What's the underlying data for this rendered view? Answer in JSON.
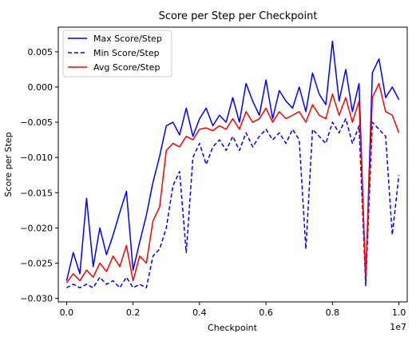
{
  "chart_data": {
    "type": "line",
    "title": "Score per Step per Checkpoint",
    "xlabel": "Checkpoint",
    "ylabel": "Score per Step",
    "x_offset_label": "1e7",
    "xlim": [
      -0.025,
      1.025
    ],
    "ylim": [
      -0.0305,
      0.0085
    ],
    "x_ticks": [
      0.0,
      0.2,
      0.4,
      0.6,
      0.8,
      1.0
    ],
    "x_tick_labels": [
      "0.0",
      "0.2",
      "0.4",
      "0.6",
      "0.8",
      "1.0"
    ],
    "y_ticks": [
      -0.03,
      -0.025,
      -0.02,
      -0.015,
      -0.01,
      -0.005,
      0.0,
      0.005
    ],
    "y_tick_labels": [
      "−0.030",
      "−0.025",
      "−0.020",
      "−0.015",
      "−0.010",
      "−0.005",
      "0.000",
      "0.005"
    ],
    "grid": false,
    "legend_position": "top-left",
    "x": [
      0.0,
      0.02,
      0.04,
      0.06,
      0.08,
      0.1,
      0.12,
      0.14,
      0.16,
      0.18,
      0.2,
      0.22,
      0.24,
      0.26,
      0.28,
      0.3,
      0.32,
      0.34,
      0.36,
      0.38,
      0.4,
      0.42,
      0.44,
      0.46,
      0.48,
      0.5,
      0.52,
      0.54,
      0.56,
      0.58,
      0.6,
      0.62,
      0.64,
      0.66,
      0.68,
      0.7,
      0.72,
      0.74,
      0.76,
      0.78,
      0.8,
      0.82,
      0.84,
      0.86,
      0.88,
      0.9,
      0.92,
      0.94,
      0.96,
      0.98,
      1.0
    ],
    "series": [
      {
        "name": "Max Score/Step",
        "color": "#0000ff",
        "dash": "solid",
        "values": [
          -0.0275,
          -0.0235,
          -0.0265,
          -0.0158,
          -0.0255,
          -0.02,
          -0.0238,
          -0.021,
          -0.0178,
          -0.0148,
          -0.026,
          -0.022,
          -0.0182,
          -0.0135,
          -0.0098,
          -0.0055,
          -0.005,
          -0.0068,
          -0.003,
          -0.007,
          -0.0045,
          -0.003,
          -0.0055,
          -0.004,
          -0.005,
          -0.0015,
          -0.005,
          0.0005,
          -0.002,
          -0.004,
          0.001,
          -0.0045,
          -0.0005,
          -0.002,
          -0.003,
          0.0,
          -0.0035,
          0.002,
          -0.001,
          -0.0025,
          0.0065,
          -0.002,
          0.0025,
          -0.0035,
          0.0005,
          -0.0275,
          0.002,
          0.004,
          -0.0015,
          0.0,
          -0.0018
        ]
      },
      {
        "name": "Min Score/Step",
        "color": "#0000ff",
        "dash": "dashed",
        "values": [
          -0.0285,
          -0.028,
          -0.0285,
          -0.028,
          -0.0285,
          -0.027,
          -0.028,
          -0.0275,
          -0.0285,
          -0.027,
          -0.0285,
          -0.028,
          -0.0285,
          -0.024,
          -0.023,
          -0.02,
          -0.014,
          -0.012,
          -0.0235,
          -0.01,
          -0.008,
          -0.011,
          -0.0085,
          -0.0075,
          -0.009,
          -0.007,
          -0.009,
          -0.0065,
          -0.0085,
          -0.007,
          -0.006,
          -0.0075,
          -0.0065,
          -0.008,
          -0.006,
          -0.0075,
          -0.023,
          -0.006,
          -0.007,
          -0.008,
          -0.005,
          -0.0065,
          -0.0045,
          -0.008,
          -0.0055,
          -0.0282,
          -0.005,
          -0.006,
          -0.007,
          -0.021,
          -0.0125
        ]
      },
      {
        "name": "Avg Score/Step",
        "color": "#ff0000",
        "dash": "solid",
        "values": [
          -0.0278,
          -0.0265,
          -0.0275,
          -0.026,
          -0.027,
          -0.025,
          -0.0262,
          -0.024,
          -0.0255,
          -0.0225,
          -0.0275,
          -0.024,
          -0.025,
          -0.019,
          -0.017,
          -0.009,
          -0.008,
          -0.0085,
          -0.007,
          -0.0075,
          -0.006,
          -0.0058,
          -0.0062,
          -0.0055,
          -0.006,
          -0.0045,
          -0.006,
          -0.0035,
          -0.005,
          -0.0045,
          -0.003,
          -0.005,
          -0.0035,
          -0.0045,
          -0.004,
          -0.0035,
          -0.005,
          -0.0025,
          -0.004,
          -0.0045,
          -0.001,
          -0.004,
          -0.0015,
          -0.005,
          -0.002,
          -0.027,
          -0.0015,
          0.0005,
          -0.0035,
          -0.004,
          -0.0065
        ]
      }
    ]
  }
}
